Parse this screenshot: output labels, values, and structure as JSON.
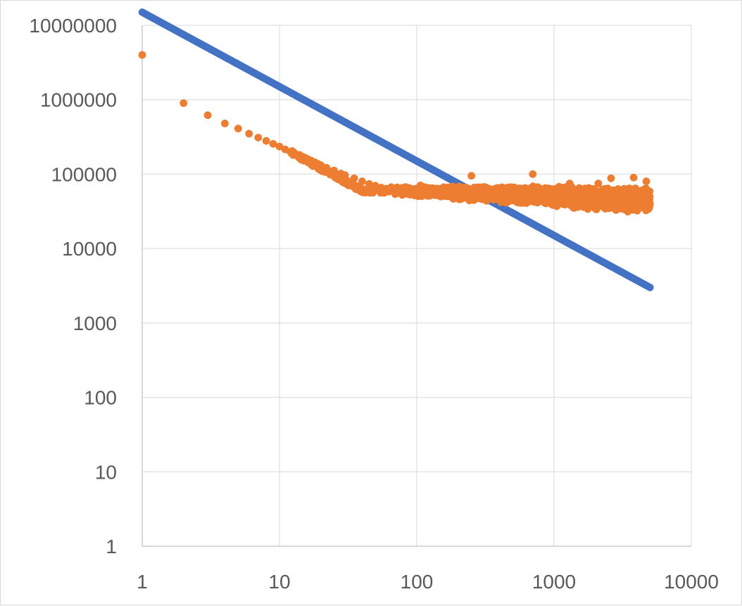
{
  "chart_data": {
    "type": "scatter",
    "title": "",
    "xlabel": "",
    "ylabel": "",
    "x_scale": "log",
    "y_scale": "log",
    "xlim": [
      1,
      10000
    ],
    "ylim": [
      1,
      10000000
    ],
    "x_tick_labels": [
      "1",
      "10",
      "100",
      "1000",
      "10000"
    ],
    "y_tick_labels": [
      "1",
      "10",
      "100",
      "1000",
      "10000",
      "100000",
      "1000000",
      "10000000"
    ],
    "grid": true,
    "legend": "none",
    "series": [
      {
        "color": "#4472C4",
        "model": "y = 15000000 / x",
        "x_range": [
          1,
          5000
        ],
        "x": [
          1,
          2,
          3,
          5,
          10,
          20,
          30,
          50,
          100,
          200,
          500,
          1000,
          2000,
          3000,
          5000
        ],
        "y": [
          15000000,
          7500000,
          5000000,
          3000000,
          1500000,
          750000,
          500000,
          300000,
          150000,
          75000,
          30000,
          15000,
          7500,
          5000,
          3000
        ]
      },
      {
        "color": "#ED7D31",
        "x": [
          1,
          2,
          3,
          4,
          5,
          6,
          7,
          8,
          9,
          10,
          11,
          12,
          13,
          14,
          15,
          16,
          17,
          18,
          19,
          20,
          22,
          25,
          28,
          30,
          35,
          40,
          45,
          50,
          55,
          60,
          70,
          80,
          90,
          100,
          120,
          150,
          180,
          200,
          250,
          300,
          400,
          500,
          700,
          1000,
          1500,
          2000,
          2600,
          3000,
          3800,
          4500,
          5000
        ],
        "y": [
          4000000,
          900000,
          620000,
          480000,
          410000,
          350000,
          310000,
          280000,
          255000,
          235000,
          215000,
          200000,
          188000,
          178000,
          168000,
          160000,
          152000,
          145000,
          138000,
          132000,
          122000,
          112000,
          102000,
          97000,
          88000,
          80000,
          74000,
          70000,
          66000,
          62000,
          58000,
          55000,
          53000,
          52000,
          51000,
          50000,
          49000,
          48500,
          47000,
          46000,
          45000,
          44500,
          44000,
          43500,
          43000,
          42500,
          42000,
          41500,
          41000,
          40500,
          40000
        ],
        "band": {
          "x_start": 60,
          "x_end": 5000,
          "y_low_start": 50000,
          "y_high_start": 75000,
          "y_low_end": 28000,
          "y_high_end": 70000
        },
        "outliers": [
          {
            "x": 250,
            "y": 95000
          },
          {
            "x": 700,
            "y": 100000
          },
          {
            "x": 2600,
            "y": 88000
          },
          {
            "x": 3800,
            "y": 90000
          },
          {
            "x": 4700,
            "y": 80000
          },
          {
            "x": 1300,
            "y": 75000
          },
          {
            "x": 2100,
            "y": 75000
          }
        ]
      }
    ]
  }
}
